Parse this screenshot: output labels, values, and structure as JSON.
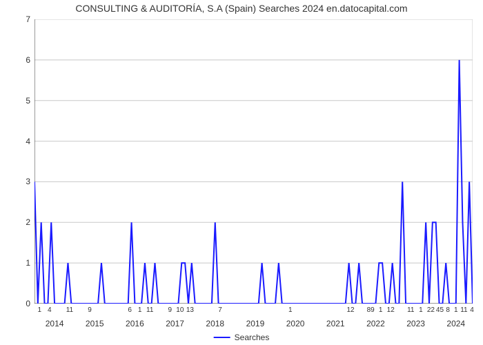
{
  "chart": {
    "type": "line",
    "title": "CONSULTING & AUDITORÍA, S.A (Spain) Searches 2024 en.datocapital.com",
    "title_fontsize": 14,
    "legend_label": "Searches",
    "line_color": "#1a1aff",
    "line_width": 2,
    "grid_color": "#c8c8c8",
    "axis_color": "#333333",
    "background_color": "#ffffff",
    "ylim": [
      0,
      7
    ],
    "yticks": [
      0,
      1,
      2,
      3,
      4,
      5,
      6,
      7
    ],
    "years": [
      2014,
      2015,
      2016,
      2017,
      2018,
      2019,
      2020,
      2021,
      2022,
      2023,
      2024
    ],
    "minor_x": [
      {
        "year": 2014,
        "labels": [
          "1",
          "4",
          "",
          "11"
        ]
      },
      {
        "year": 2015,
        "labels": [
          "",
          "9",
          "",
          ""
        ]
      },
      {
        "year": 2016,
        "labels": [
          "",
          "6",
          "1",
          "11"
        ]
      },
      {
        "year": 2017,
        "labels": [
          "",
          "9",
          "10",
          "13"
        ]
      },
      {
        "year": 2018,
        "labels": [
          "",
          "",
          "7",
          ""
        ]
      },
      {
        "year": 2019,
        "labels": [
          "",
          "",
          "",
          ""
        ]
      },
      {
        "year": 2020,
        "labels": [
          "",
          "1",
          "",
          ""
        ]
      },
      {
        "year": 2021,
        "labels": [
          "",
          "",
          "",
          "12"
        ]
      },
      {
        "year": 2022,
        "labels": [
          "",
          "89",
          "1",
          "12"
        ]
      },
      {
        "year": 2023,
        "labels": [
          "",
          "11",
          "1",
          "22"
        ]
      },
      {
        "year": 2024,
        "labels": [
          "45",
          "8",
          "1",
          "11",
          "4"
        ]
      }
    ],
    "series": [
      3,
      0,
      2,
      0,
      0,
      2,
      0,
      0,
      0,
      0,
      1,
      0,
      0,
      0,
      0,
      0,
      0,
      0,
      0,
      0,
      1,
      0,
      0,
      0,
      0,
      0,
      0,
      0,
      0,
      2,
      0,
      0,
      0,
      1,
      0,
      0,
      1,
      0,
      0,
      0,
      0,
      0,
      0,
      0,
      1,
      1,
      0,
      1,
      0,
      0,
      0,
      0,
      0,
      0,
      2,
      0,
      0,
      0,
      0,
      0,
      0,
      0,
      0,
      0,
      0,
      0,
      0,
      0,
      1,
      0,
      0,
      0,
      0,
      1,
      0,
      0,
      0,
      0,
      0,
      0,
      0,
      0,
      0,
      0,
      0,
      0,
      0,
      0,
      0,
      0,
      0,
      0,
      0,
      0,
      1,
      0,
      0,
      1,
      0,
      0,
      0,
      0,
      0,
      1,
      1,
      0,
      0,
      1,
      0,
      0,
      3,
      0,
      0,
      0,
      0,
      0,
      0,
      2,
      0,
      2,
      2,
      0,
      0,
      1,
      0,
      0,
      0,
      6,
      2,
      0,
      3,
      0
    ]
  }
}
